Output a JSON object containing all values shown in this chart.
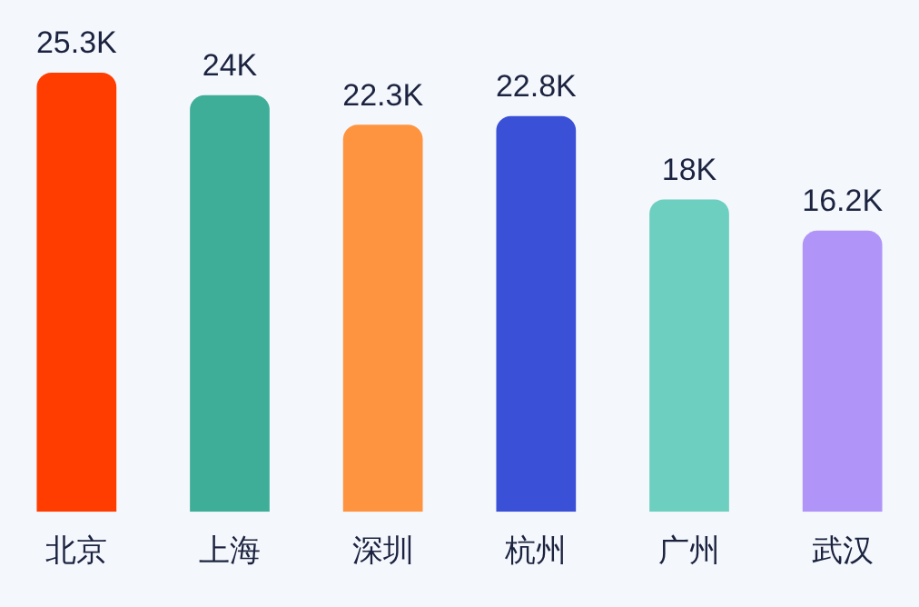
{
  "chart_data": {
    "type": "bar",
    "categories": [
      "北京",
      "上海",
      "深圳",
      "杭州",
      "广州",
      "武汉"
    ],
    "values": [
      25.3,
      24,
      22.3,
      22.8,
      18,
      16.2
    ],
    "value_labels": [
      "25.3K",
      "24K",
      "22.3K",
      "22.8K",
      "18K",
      "16.2K"
    ],
    "colors": [
      "#ff3d00",
      "#3fae98",
      "#ff9440",
      "#3a50d6",
      "#6dcfc0",
      "#b094f8"
    ],
    "grid": false,
    "legend": false
  }
}
